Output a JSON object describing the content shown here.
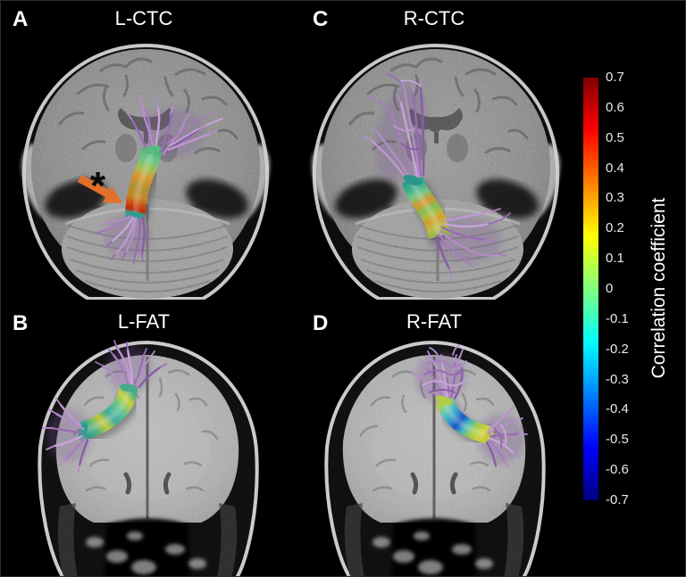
{
  "figure": {
    "panels": [
      {
        "letter": "A",
        "title": "L-CTC"
      },
      {
        "letter": "C",
        "title": "R-CTC"
      },
      {
        "letter": "B",
        "title": "L-FAT"
      },
      {
        "letter": "D",
        "title": "R-FAT"
      }
    ],
    "annotations": {
      "asterisk": "*",
      "arrow_color": "#e2702a"
    },
    "colorbar": {
      "label": "Correlation coefficient",
      "max": 0.7,
      "min": -0.7,
      "ticks": [
        "0.7",
        "0.6",
        "0.5",
        "0.4",
        "0.3",
        "0.2",
        "0.1",
        "0",
        "-0.1",
        "-0.2",
        "-0.3",
        "-0.4",
        "-0.5",
        "-0.6",
        "-0.7"
      ],
      "colormap": "jet",
      "colors": {
        "top": "#7f0000",
        "red": "#ff0000",
        "orange": "#ff8000",
        "yellow": "#ffff00",
        "green": "#80ff80",
        "cyan": "#00ffff",
        "blue": "#0000ff",
        "bottom": "#00007f"
      }
    },
    "tract_style": {
      "fiber_color": "#b48cc8"
    }
  }
}
